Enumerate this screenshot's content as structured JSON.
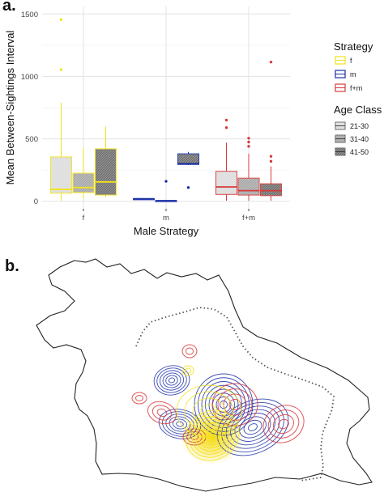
{
  "panels": {
    "a_label": "a.",
    "b_label": "b."
  },
  "chart_data": {
    "type": "box",
    "xlabel": "Male Strategy",
    "ylabel": "Mean Between-Sightings Interval",
    "ylim": [
      -60,
      1560
    ],
    "yticks": [
      0,
      500,
      1000,
      1500
    ],
    "categories": [
      "f",
      "m",
      "f+m"
    ],
    "grid": true,
    "legend": {
      "placement": "right",
      "strategy": {
        "title": "Strategy",
        "items": [
          {
            "label": "f",
            "color": "#f2e21a"
          },
          {
            "label": "m",
            "color": "#1a2ea6"
          },
          {
            "label": "f+m",
            "color": "#d83b3b"
          }
        ]
      },
      "age_class": {
        "title": "Age Class",
        "items": [
          {
            "label": "21-30",
            "fill": "#dcdcdc"
          },
          {
            "label": "31-40",
            "fill": "#a6a6a6"
          },
          {
            "label": "41-50",
            "fill": "#6e6e6e"
          }
        ]
      }
    },
    "boxes": [
      {
        "strategy": "f",
        "age": "21-30",
        "whisker_low": 5,
        "q1": 65,
        "median": 95,
        "q3": 355,
        "whisker_high": 790,
        "outliers": [
          1055,
          1455
        ]
      },
      {
        "strategy": "f",
        "age": "31-40",
        "whisker_low": 20,
        "q1": 70,
        "median": 110,
        "q3": 225,
        "whisker_high": 430,
        "outliers": []
      },
      {
        "strategy": "f",
        "age": "41-50",
        "whisker_low": 30,
        "q1": 50,
        "median": 155,
        "q3": 420,
        "whisker_high": 600,
        "outliers": []
      },
      {
        "strategy": "m",
        "age": "21-30",
        "whisker_low": 20,
        "q1": 20,
        "median": 20,
        "q3": 20,
        "whisker_high": 20,
        "outliers": []
      },
      {
        "strategy": "m",
        "age": "31-40",
        "whisker_low": 5,
        "q1": 5,
        "median": 5,
        "q3": 5,
        "whisker_high": 5,
        "outliers": [
          160
        ]
      },
      {
        "strategy": "m",
        "age": "41-50",
        "whisker_low": 290,
        "q1": 295,
        "median": 300,
        "q3": 380,
        "whisker_high": 395,
        "outliers": [
          110
        ]
      },
      {
        "strategy": "f+m",
        "age": "21-30",
        "whisker_low": 5,
        "q1": 55,
        "median": 115,
        "q3": 240,
        "whisker_high": 470,
        "outliers": [
          590,
          650
        ]
      },
      {
        "strategy": "f+m",
        "age": "31-40",
        "whisker_low": 5,
        "q1": 50,
        "median": 85,
        "q3": 185,
        "whisker_high": 380,
        "outliers": [
          440,
          475,
          505
        ]
      },
      {
        "strategy": "f+m",
        "age": "41-50",
        "whisker_low": 5,
        "q1": 45,
        "median": 85,
        "q3": 140,
        "whisker_high": 280,
        "outliers": [
          320,
          360,
          1115
        ]
      }
    ]
  },
  "map": {
    "kind": "kernel-density contour map",
    "contour_colors": [
      "#1a2ea6",
      "#d83b3b",
      "#f2e21a"
    ]
  }
}
